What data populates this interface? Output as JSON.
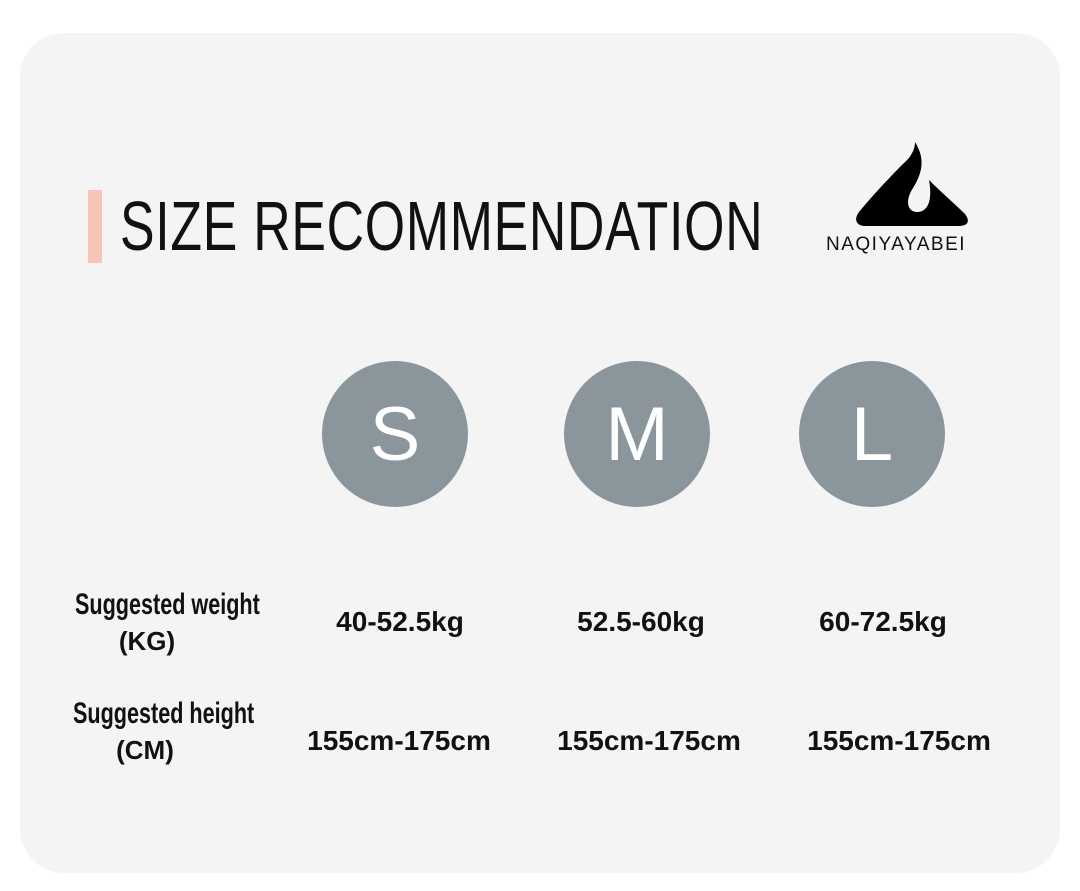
{
  "title": "SIZE RECOMMENDATION",
  "brand": {
    "name": "NAQIYAYABEI",
    "logo_icon": "mountain-flame-logo"
  },
  "colors": {
    "accent": "#f7c4b6",
    "circle": "#8b959c",
    "card": "#f4f4f4"
  },
  "sizes": [
    "S",
    "M",
    "L"
  ],
  "rows": [
    {
      "label": "Suggested weight",
      "unit": "(KG)",
      "values": [
        "40-52.5kg",
        "52.5-60kg",
        "60-72.5kg"
      ]
    },
    {
      "label": "Suggested height",
      "unit": "(CM)",
      "values": [
        "155cm-175cm",
        "155cm-175cm",
        "155cm-175cm"
      ]
    }
  ]
}
